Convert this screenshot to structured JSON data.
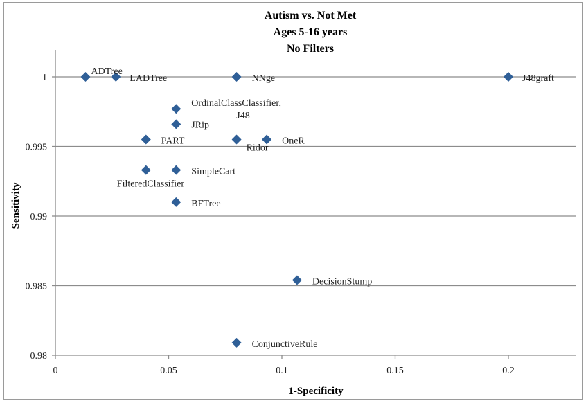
{
  "chart_data": {
    "type": "scatter",
    "title": [
      "Autism vs. Not Met",
      "Ages 5-16 years",
      "No Filters"
    ],
    "xlabel": "1-Specificity",
    "ylabel": "Sensitivity",
    "xlim": [
      0,
      0.23
    ],
    "ylim": [
      0.98,
      1.002
    ],
    "xticks": [
      0,
      0.05,
      0.1,
      0.15,
      0.2
    ],
    "xtick_labels": [
      "0",
      "0.05",
      "0.1",
      "0.15",
      "0.2"
    ],
    "yticks": [
      0.98,
      0.985,
      0.99,
      0.995,
      1
    ],
    "ytick_labels": [
      "0.98",
      "0.985",
      "0.99",
      "0.995",
      "1"
    ],
    "grid": "horizontal",
    "marker_color": "#2f5f97",
    "points": [
      {
        "label": "ADTree",
        "x": 0.0133,
        "y": 1.0
      },
      {
        "label": "LADTree",
        "x": 0.0267,
        "y": 1.0
      },
      {
        "label": "NNge",
        "x": 0.08,
        "y": 1.0
      },
      {
        "label": "J48graft",
        "x": 0.2,
        "y": 1.0
      },
      {
        "label": "OrdinalClassClassifier,\nJ48",
        "x": 0.0533,
        "y": 0.9977
      },
      {
        "label": "JRip",
        "x": 0.0533,
        "y": 0.9966
      },
      {
        "label": "PART",
        "x": 0.04,
        "y": 0.9955
      },
      {
        "label": "Ridor",
        "x": 0.08,
        "y": 0.9955
      },
      {
        "label": "OneR",
        "x": 0.0933,
        "y": 0.9955
      },
      {
        "label": "FilteredClassifier",
        "x": 0.04,
        "y": 0.9933
      },
      {
        "label": "SimpleCart",
        "x": 0.0533,
        "y": 0.9933
      },
      {
        "label": "BFTree",
        "x": 0.0533,
        "y": 0.991
      },
      {
        "label": "DecisionStump",
        "x": 0.1067,
        "y": 0.9854
      },
      {
        "label": "ConjunctiveRule",
        "x": 0.08,
        "y": 0.9809
      }
    ]
  }
}
